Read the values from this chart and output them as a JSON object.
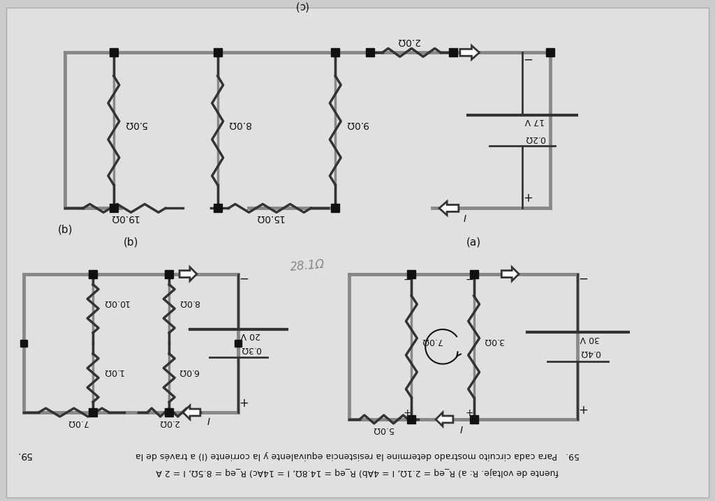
{
  "background_color": "#d8d8d8",
  "title": "59",
  "page_bg": "#e8e8e8",
  "circuit_color": "#333333",
  "wire_color": "#888888",
  "wire_lw": 3.5,
  "text_color": "#111111",
  "bottom_text_line1": "59.   Para cada circuito mostrado determine la resistencia equivalente y la corriente (I) a través de la",
  "bottom_text_line2": "fuente de voltaje. R: a) R_eq = 2.1Ω, I = 4Ab) R_eq = 14.8Ω, I = 14Ac) R_eq = 8.5Ω, I = 2 A",
  "label_a": "(a)",
  "label_b": "(b)",
  "label_c": "(c)"
}
